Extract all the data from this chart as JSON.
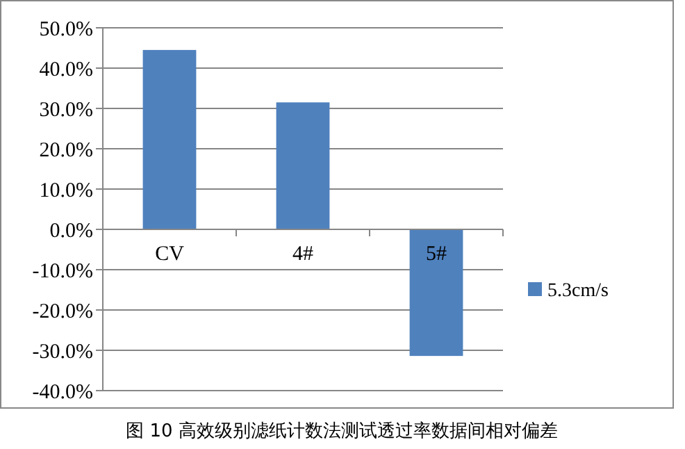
{
  "chart_data": {
    "type": "bar",
    "categories": [
      "CV",
      "4#",
      "5#"
    ],
    "series": [
      {
        "name": "5.3cm/s",
        "color": "#4f81bd",
        "values": [
          44.5,
          31.5,
          -31.4
        ]
      }
    ],
    "ylim": [
      -40,
      50
    ],
    "yticks": [
      {
        "value": -40,
        "label": "-40.0%"
      },
      {
        "value": -30,
        "label": "-30.0%"
      },
      {
        "value": -20,
        "label": "-20.0%"
      },
      {
        "value": -10,
        "label": "-10.0%"
      },
      {
        "value": 0,
        "label": "0.0%"
      },
      {
        "value": 10,
        "label": "10.0%"
      },
      {
        "value": 20,
        "label": "20.0%"
      },
      {
        "value": 30,
        "label": "30.0%"
      },
      {
        "value": 40,
        "label": "40.0%"
      },
      {
        "value": 50,
        "label": "50.0%"
      }
    ],
    "grid": "y",
    "legend": "right",
    "annotations": [
      "图 10  高效级别滤纸计数法测试透过率数据间相对偏差"
    ]
  }
}
